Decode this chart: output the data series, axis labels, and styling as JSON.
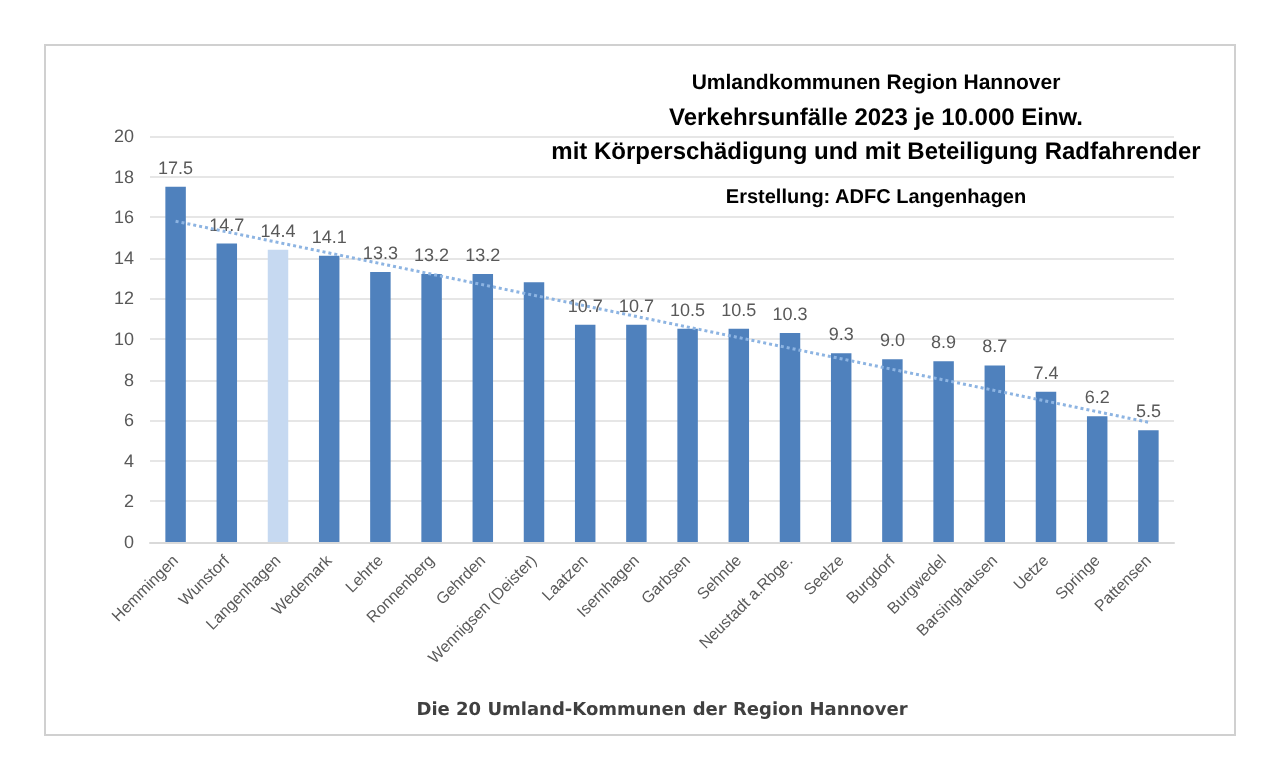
{
  "chart_data": {
    "type": "bar",
    "title": "Umlandkommunen Region Hannover",
    "subtitle": "Verkehrsunfälle 2023 je 10.000 Einw.\nmit Körperschädigung und mit Beteiligung Radfahrender",
    "xlabel": "Die 20 Umland-Kommunen der Region Hannover",
    "annotations": [
      "Erstellung: ADFC Langenhagen"
    ],
    "categories": [
      "Hemmingen",
      "Wunstorf",
      "Langenhagen",
      "Wedemark",
      "Lehrte",
      "Ronnenberg",
      "Gehrden",
      "Wennigsen (Deister)",
      "Laatzen",
      "Isernhagen",
      "Garbsen",
      "Sehnde",
      "Neustadt a.Rbge.",
      "Seelze",
      "Burgdorf",
      "Burgwedel",
      "Barsinghausen",
      "Uetze",
      "Springe",
      "Pattensen"
    ],
    "series": [
      {
        "values": [
          17.5,
          14.7,
          14.4,
          14.1,
          13.3,
          13.2,
          13.2,
          12.8,
          10.7,
          10.7,
          10.5,
          10.5,
          10.3,
          9.3,
          9.0,
          8.9,
          8.7,
          7.4,
          6.2,
          5.5
        ],
        "colors": [
          "#4f81bd",
          "#4f81bd",
          "#c6d9f1",
          "#4f81bd",
          "#4f81bd",
          "#4f81bd",
          "#4f81bd",
          "#4f81bd",
          "#4f81bd",
          "#4f81bd",
          "#4f81bd",
          "#4f81bd",
          "#4f81bd",
          "#4f81bd",
          "#4f81bd",
          "#4f81bd",
          "#4f81bd",
          "#4f81bd",
          "#4f81bd",
          "#4f81bd"
        ],
        "value_labels": [
          "17.5",
          "14.7",
          "14.4",
          "14.1",
          "13.3",
          "13.2",
          "13.2",
          null,
          "10.7",
          "10.7",
          "10.5",
          "10.5",
          "10.3",
          "9.3",
          "9.0",
          "8.9",
          "8.7",
          "7.4",
          "6.2",
          "5.5"
        ]
      },
      {
        "type": "line",
        "color": "#8db4e2",
        "line_style": "dotted",
        "marker": "none",
        "x": [
          "Hemmingen",
          "Pattensen"
        ],
        "values": [
          15.8,
          5.9
        ]
      }
    ],
    "ylim": [
      0,
      20
    ],
    "yticks": [
      0,
      2,
      4,
      6,
      8,
      10,
      12,
      14,
      16,
      18,
      20
    ],
    "grid": "y"
  }
}
